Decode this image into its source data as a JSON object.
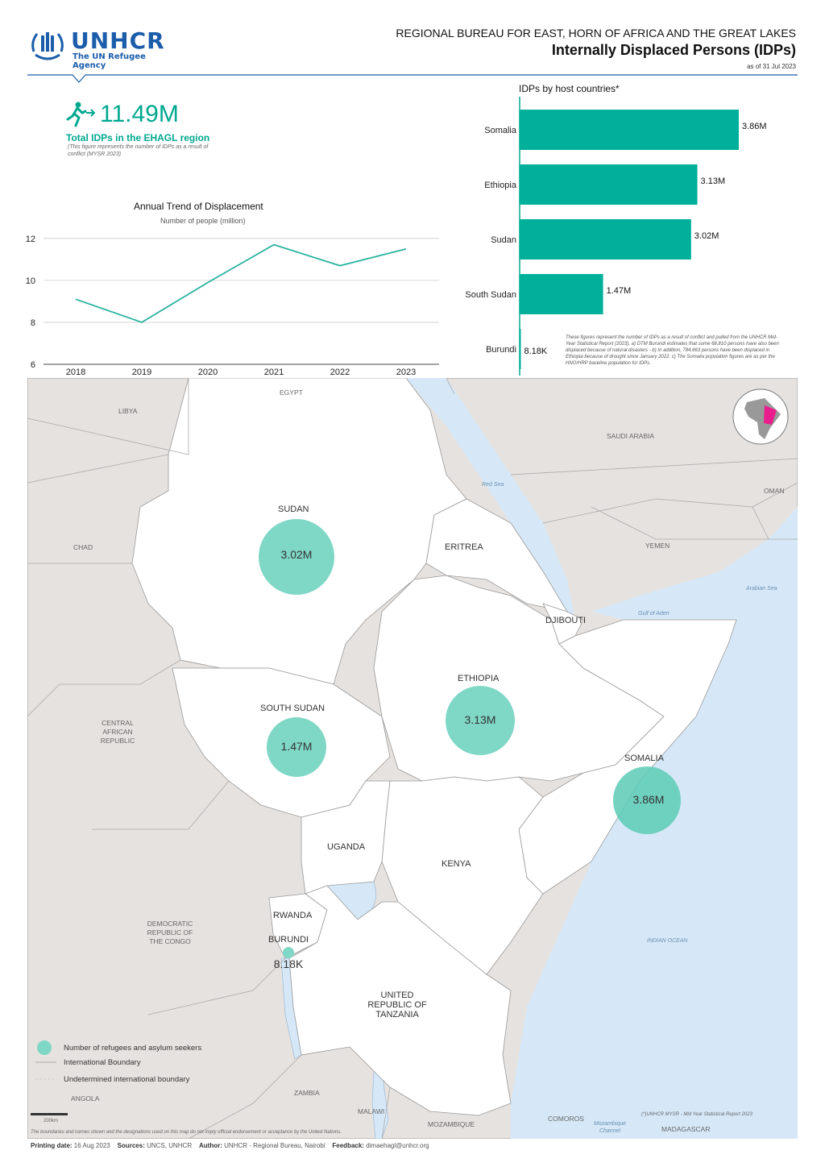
{
  "header": {
    "logo_name": "UNHCR",
    "logo_tagline": "The UN Refugee Agency",
    "bureau": "REGIONAL BUREAU FOR EAST, HORN OF AFRICA AND THE GREAT LAKES",
    "title": "Internally Displaced Persons (IDPs)",
    "as_of": "as of 31 Jul 2023",
    "accent_color": "#00a88f",
    "logo_color": "#1b5dab"
  },
  "total": {
    "icon": "running-person-icon",
    "value": "11.49M",
    "label": "Total IDPs in the EHAGL region",
    "note": "(This figure represents the number of IDPs as a result of conflict (MYSR 2023)"
  },
  "chart_data": [
    {
      "type": "line",
      "title": "Annual Trend of Displacement",
      "subtitle": "Number of people (million)",
      "x": [
        "2018",
        "2019",
        "2020",
        "2021",
        "2022",
        "2023"
      ],
      "series": [
        {
          "values": [
            9.1,
            8.0,
            9.9,
            11.7,
            10.7,
            11.5
          ]
        }
      ],
      "yticks": [
        "6",
        "8",
        "10",
        "12"
      ],
      "ylim": [
        6,
        12.3
      ],
      "grid": true
    },
    {
      "type": "bar",
      "orientation": "horizontal",
      "title": "IDPs by host countries*",
      "categories": [
        "Somalia",
        "Ethiopia",
        "Sudan",
        "South Sudan",
        "Burundi"
      ],
      "values": [
        3.86,
        3.13,
        3.02,
        1.47,
        0.00818
      ],
      "value_labels": [
        "3.86M",
        "3.13M",
        "3.02M",
        "1.47M",
        "8.18K"
      ],
      "xlim": [
        0,
        3.86
      ],
      "color": "#00b09a",
      "note": "These figures represent the number of IDPs as a result of conflict and pulled from the UNHCR Mid-Year Statistical Report (2023). a) DTM Burundi estimates that some 68,810 persons have also been displaced because of natural disasters - b) In addition, 784,663 persons have been displaced in Ethiopia because of drought since January 2022. c) The Somalia population figures are as per the HNO/HRP baseline population for IDPs."
    }
  ],
  "map": {
    "bubbles": [
      {
        "country": "SUDAN",
        "value": "3.02M"
      },
      {
        "country": "ETHIOPIA",
        "value": "3.13M"
      },
      {
        "country": "SOUTH SUDAN",
        "value": "1.47M"
      },
      {
        "country": "SOMALIA",
        "value": "3.86M"
      },
      {
        "country": "BURUNDI",
        "value": "8.18K"
      }
    ],
    "labels": {
      "egypt": "EGYPT",
      "libya": "LIBYA",
      "chad": "CHAD",
      "saudi": "SAUDI ARABIA",
      "oman": "OMAN",
      "yemen": "YEMEN",
      "eritrea": "ERITREA",
      "djibouti": "DJIBOUTI",
      "car": "CENTRAL AFRICAN REPUBLIC",
      "drc": "DEMOCRATIC REPUBLIC OF THE CONGO",
      "uganda": "UGANDA",
      "kenya": "KENYA",
      "rwanda": "RWANDA",
      "tanzania": "UNITED REPUBLIC OF TANZANIA",
      "zambia": "ZAMBIA",
      "angola": "ANGOLA",
      "malawi": "MALAWI",
      "mozambique": "MOZAMBIQUE",
      "comoros": "COMOROS",
      "madagascar": "MADAGASCAR"
    },
    "seas": {
      "red_sea": "Red Sea",
      "arabian_sea": "Arabian Sea",
      "gulf_aden": "Gulf of Aden",
      "indian_ocean": "INDIAN OCEAN",
      "mozambique_channel": "Mozambique Channel"
    },
    "legend": {
      "bubble": "Number of refugees and asylum seekers",
      "intl_boundary": "International Boundary",
      "undetermined": "Undetermined international boundary",
      "scale": "200km"
    },
    "source_note": "(*)UNHCR MYSR - Mid Year Statistical Report 2023",
    "disclaimer": "The boundaries and names shown and the designations used on this map do not imply official endorsement or acceptance by the United Nations.",
    "land_color": "#e6e2df",
    "focus_color": "#ffffff",
    "water_color": "#d6e8f7"
  },
  "footer": {
    "printing_label": "Printing date:",
    "printing_value": "16 Aug 2023",
    "sources_label": "Sources:",
    "sources_value": "UNCS, UNHCR",
    "author_label": "Author:",
    "author_value": "UNHCR - Regional Bureau, Nairobi",
    "feedback_label": "Feedback:",
    "feedback_value": "dimaehagl@unhcr.org"
  }
}
